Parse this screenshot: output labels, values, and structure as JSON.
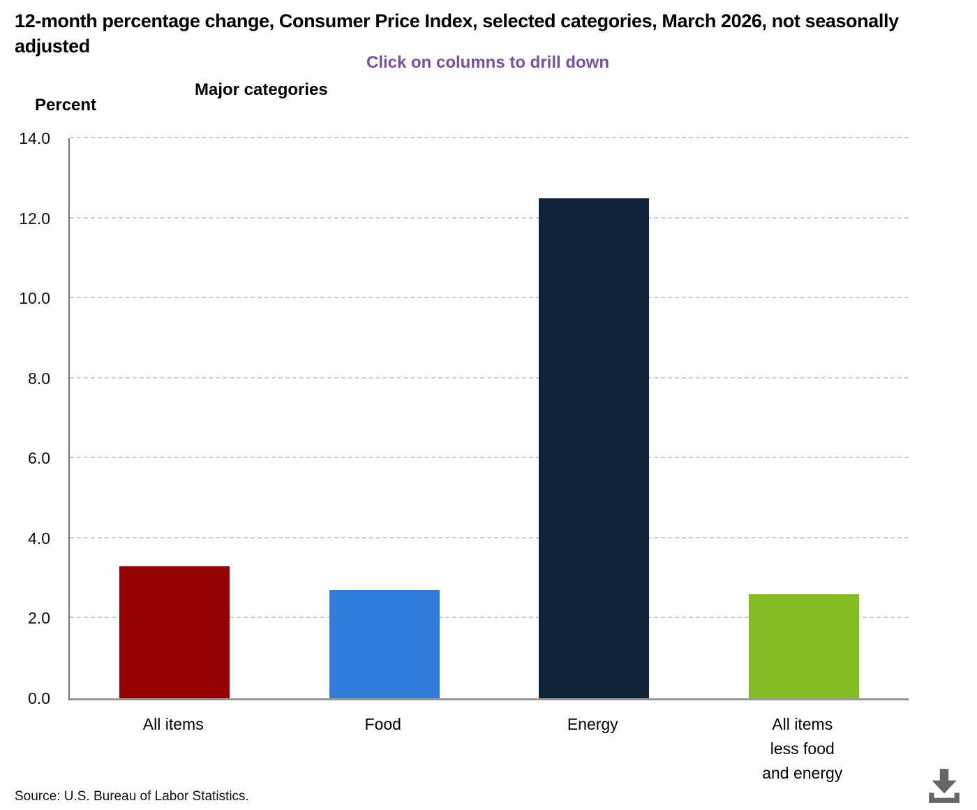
{
  "chart": {
    "title": "12-month percentage change, Consumer Price Index, selected categories, March 2026, not seasonally adjusted",
    "subtitle": "Click on columns to drill down",
    "group_label": "Major categories",
    "ylabel": "Percent",
    "source": "Source: U.S. Bureau of Labor Statistics.",
    "subtitle_color": "#7a4f9d"
  },
  "icons": {
    "download": "download-icon"
  },
  "chart_data": {
    "type": "bar",
    "title": "12-month percentage change, Consumer Price Index, selected categories, March 2026, not seasonally adjusted",
    "subtitle": "Click on columns to drill down",
    "group_label": "Major categories",
    "ylabel": "Percent",
    "xlabel": "",
    "categories": [
      "All items",
      "Food",
      "Energy",
      "All items less food and energy"
    ],
    "category_lines": [
      [
        "All items"
      ],
      [
        "Food"
      ],
      [
        "Energy"
      ],
      [
        "All items",
        "less food",
        "and energy"
      ]
    ],
    "values": [
      3.3,
      2.7,
      12.5,
      2.6
    ],
    "bar_colors": [
      "#950000",
      "#2f7dd9",
      "#112338",
      "#85bc22"
    ],
    "ylim": [
      0,
      14
    ],
    "ytick_values": [
      0,
      2,
      4,
      6,
      8,
      10,
      12,
      14
    ],
    "ytick_labels": [
      "0.0",
      "2.0",
      "4.0",
      "6.0",
      "8.0",
      "10.0",
      "12.0",
      "14.0"
    ],
    "grid": "horizontal-dashed",
    "legend": "none"
  }
}
